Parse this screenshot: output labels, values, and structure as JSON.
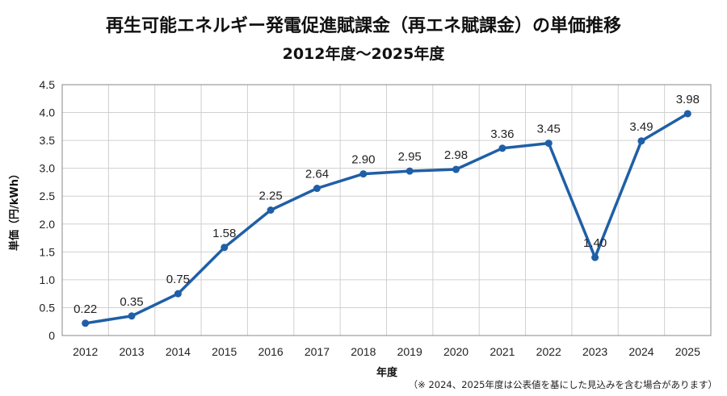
{
  "title": "再生可能エネルギー発電促進賦課金（再エネ賦課金）の単価推移",
  "subtitle": "2012年度～2025年度",
  "note": "（※ 2024、2025年度は公表値を基にした見込みを含む場合があります）",
  "colors": {
    "line": "#1f5fa6",
    "grid": "#d0d0d0",
    "plot_border": "#888888"
  },
  "chart_data": {
    "type": "line",
    "title": "再生可能エネルギー発電促進賦課金（再エネ賦課金）の単価推移",
    "subtitle": "2012年度～2025年度",
    "xlabel": "年度",
    "ylabel": "単価（円/kWh）",
    "categories": [
      "2012",
      "2013",
      "2014",
      "2015",
      "2016",
      "2017",
      "2018",
      "2019",
      "2020",
      "2021",
      "2022",
      "2023",
      "2024",
      "2025"
    ],
    "values": [
      0.22,
      0.35,
      0.75,
      1.58,
      2.25,
      2.64,
      2.9,
      2.95,
      2.98,
      3.36,
      3.45,
      1.4,
      3.49,
      3.98
    ],
    "data_labels": [
      "0.22",
      "0.35",
      "0.75",
      "1.58",
      "2.25",
      "2.64",
      "2.90",
      "2.95",
      "2.98",
      "3.36",
      "3.45",
      "1.40",
      "3.49",
      "3.98"
    ],
    "ylim": [
      0,
      4.5
    ],
    "yticks": [
      "0",
      "0.5",
      "1.0",
      "1.5",
      "2.0",
      "2.5",
      "3.0",
      "3.5",
      "4.0",
      "4.5"
    ],
    "grid": true,
    "legend": "none"
  }
}
